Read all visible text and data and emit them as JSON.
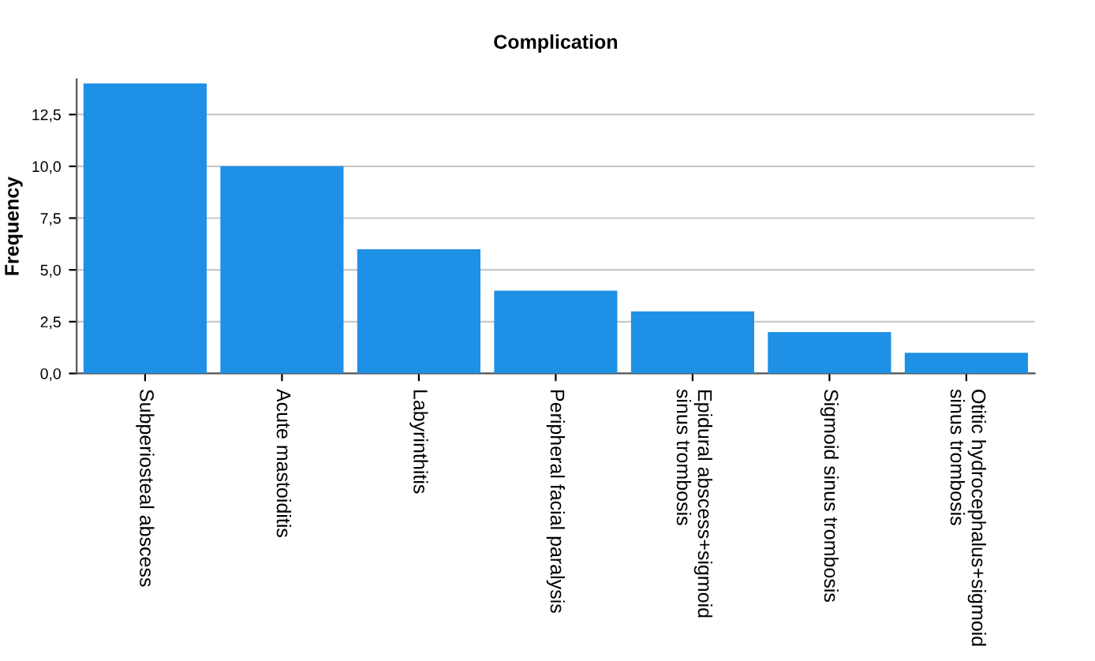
{
  "chart_data": {
    "type": "bar",
    "title": "Complication",
    "ylabel": "Frequency",
    "categories": [
      "Subperiosteal abscess",
      "Acute mastoiditis",
      "Labyrinthitis",
      "Peripheral facial paralysis",
      "Epidural abscess+sigmoid\nsinus trombosis",
      "Sigmoid sinus trombosis",
      "Otitic hydrocephalus+sigmoid\nsinus trombosis"
    ],
    "values": [
      14,
      10,
      6,
      4,
      3,
      2,
      1
    ],
    "color": "#1e90e6",
    "ylim": [
      0,
      14.2
    ],
    "yticks": [
      {
        "value": 0,
        "label": "0,0"
      },
      {
        "value": 2.5,
        "label": "2,5"
      },
      {
        "value": 5,
        "label": "5,0"
      },
      {
        "value": 7.5,
        "label": "7,5"
      },
      {
        "value": 10,
        "label": "10,0"
      },
      {
        "value": 12.5,
        "label": "12,5"
      }
    ],
    "grid": "y"
  }
}
